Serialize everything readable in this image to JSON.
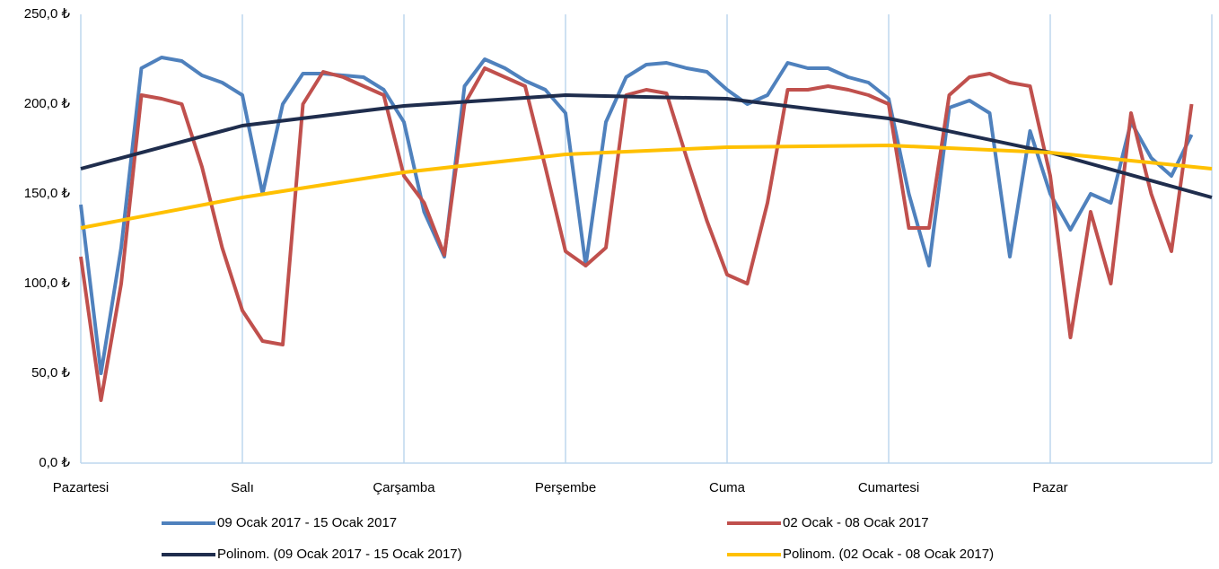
{
  "chart_data": {
    "type": "line",
    "x": [
      0,
      0.125,
      0.25,
      0.375,
      0.5,
      0.625,
      0.75,
      0.875,
      1,
      1.125,
      1.25,
      1.375,
      1.5,
      1.625,
      1.75,
      1.875,
      2,
      2.125,
      2.25,
      2.375,
      2.5,
      2.625,
      2.75,
      2.875,
      3,
      3.125,
      3.25,
      3.375,
      3.5,
      3.625,
      3.75,
      3.875,
      4,
      4.125,
      4.25,
      4.375,
      4.5,
      4.625,
      4.75,
      4.875,
      5,
      5.125,
      5.25,
      5.375,
      5.5,
      5.625,
      5.75,
      5.875,
      6,
      6.125,
      6.25,
      6.375,
      6.5,
      6.625,
      6.75,
      6.875
    ],
    "series": [
      {
        "name": "09 Ocak 2017 - 15 Ocak 2017",
        "color": "#4f81bd",
        "values": [
          144,
          50,
          120,
          220,
          226,
          224,
          216,
          212,
          205,
          150,
          200,
          217,
          217,
          216,
          215,
          208,
          190,
          140,
          115,
          210,
          225,
          220,
          213,
          208,
          195,
          110,
          190,
          215,
          222,
          223,
          220,
          218,
          208,
          200,
          205,
          223,
          220,
          220,
          215,
          212,
          203,
          150,
          110,
          198,
          202,
          195,
          115,
          185,
          150,
          130,
          150,
          145,
          190,
          170,
          160,
          183
        ]
      },
      {
        "name": "02 Ocak - 08 Ocak 2017",
        "color": "#c0504d",
        "values": [
          115,
          35,
          100,
          205,
          203,
          200,
          165,
          120,
          85,
          68,
          66,
          200,
          218,
          215,
          210,
          205,
          160,
          145,
          116,
          200,
          220,
          215,
          210,
          165,
          118,
          110,
          120,
          205,
          208,
          206,
          170,
          135,
          105,
          100,
          145,
          208,
          208,
          210,
          208,
          205,
          200,
          131,
          131,
          205,
          215,
          217,
          212,
          210,
          160,
          70,
          140,
          100,
          195,
          150,
          118,
          200
        ]
      },
      {
        "name": "Polinom. (09 Ocak 2017 - 15 Ocak 2017)",
        "color": "#1f2d4d",
        "x": [
          0,
          1,
          2,
          3,
          4,
          5,
          6,
          7
        ],
        "values": [
          164,
          188,
          199,
          205,
          203,
          192,
          173,
          148
        ]
      },
      {
        "name": "Polinom. (02 Ocak - 08 Ocak 2017)",
        "color": "#ffc000",
        "x": [
          0,
          1,
          2,
          3,
          4,
          5,
          6,
          7
        ],
        "values": [
          131,
          148,
          162,
          172,
          176,
          177,
          173,
          164
        ]
      }
    ],
    "xlim": [
      0,
      7
    ],
    "xticks": [
      {
        "value": 0,
        "label": "Pazartesi"
      },
      {
        "value": 1,
        "label": "Salı"
      },
      {
        "value": 2,
        "label": "Çarşamba"
      },
      {
        "value": 3,
        "label": "Perşembe"
      },
      {
        "value": 4,
        "label": "Cuma"
      },
      {
        "value": 5,
        "label": "Cumartesi"
      },
      {
        "value": 6,
        "label": "Pazar"
      },
      {
        "value": 7,
        "label": ""
      }
    ],
    "ylim": [
      0,
      250
    ],
    "yticks": [
      {
        "value": 0,
        "label": "0,0 ₺"
      },
      {
        "value": 50,
        "label": "50,0 ₺"
      },
      {
        "value": 100,
        "label": "100,0 ₺"
      },
      {
        "value": 150,
        "label": "150,0 ₺"
      },
      {
        "value": 200,
        "label": "200,0 ₺"
      },
      {
        "value": 250,
        "label": "250,0 ₺"
      }
    ],
    "grid": true
  }
}
